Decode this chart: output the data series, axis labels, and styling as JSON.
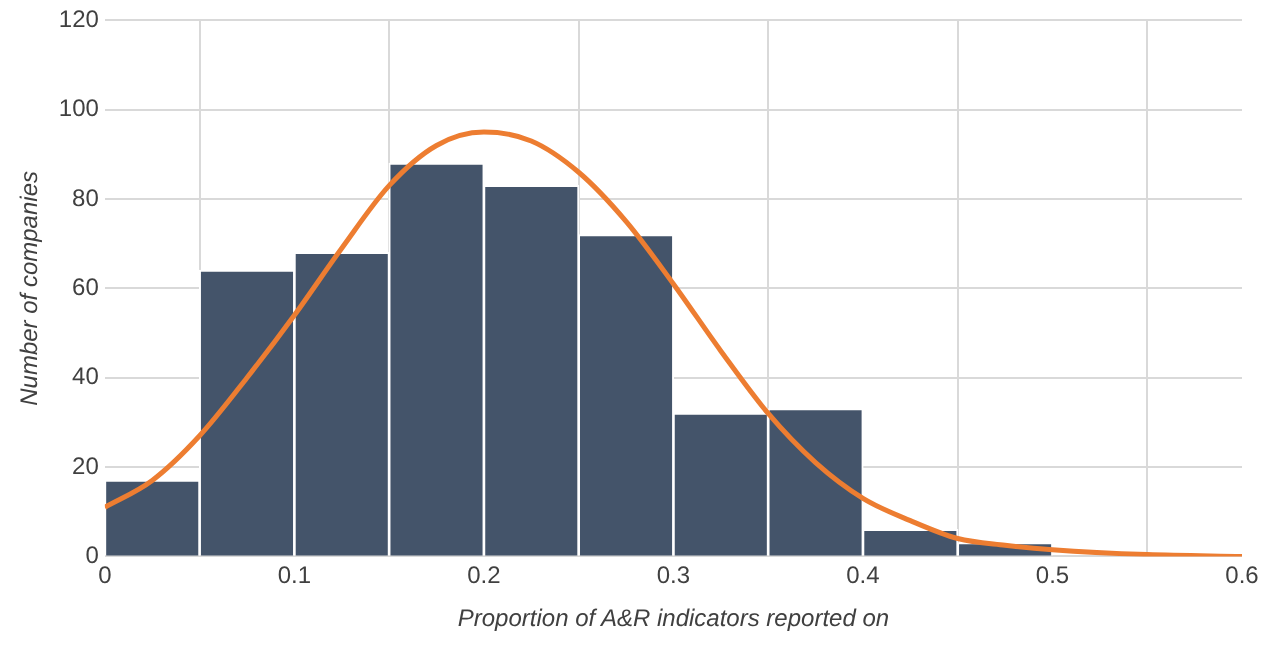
{
  "chart_data": {
    "type": "histogram",
    "xlabel": "Proportion of A&R indicators reported on",
    "ylabel": "Number of companies",
    "bins": [
      0,
      0.05,
      0.1,
      0.15,
      0.2,
      0.25,
      0.3,
      0.35,
      0.4,
      0.45,
      0.5
    ],
    "values": [
      17,
      64,
      68,
      88,
      83,
      72,
      32,
      33,
      6,
      3
    ],
    "color": "#44546a",
    "series": [
      {
        "type": "line",
        "color": "#ed7d31",
        "x": [
          0,
          0.025,
          0.05,
          0.075,
          0.1,
          0.125,
          0.15,
          0.175,
          0.2,
          0.225,
          0.25,
          0.275,
          0.3,
          0.325,
          0.35,
          0.375,
          0.4,
          0.425,
          0.45,
          0.475,
          0.5,
          0.55,
          0.6
        ],
        "values": [
          11,
          17,
          27,
          40,
          54,
          69,
          83,
          92,
          95,
          93,
          86,
          75,
          61,
          46,
          32,
          21,
          13,
          8,
          4,
          2.5,
          1.5,
          0.4,
          0
        ]
      }
    ],
    "xlim": [
      0,
      0.6
    ],
    "xticks": [
      0,
      0.1,
      0.2,
      0.3,
      0.4,
      0.5,
      0.6
    ],
    "ylim": [
      0,
      120
    ],
    "yticks": [
      0,
      20,
      40,
      60,
      80,
      100,
      120
    ],
    "grid": true,
    "legend": false,
    "marker": "none",
    "line_style": "solid"
  }
}
